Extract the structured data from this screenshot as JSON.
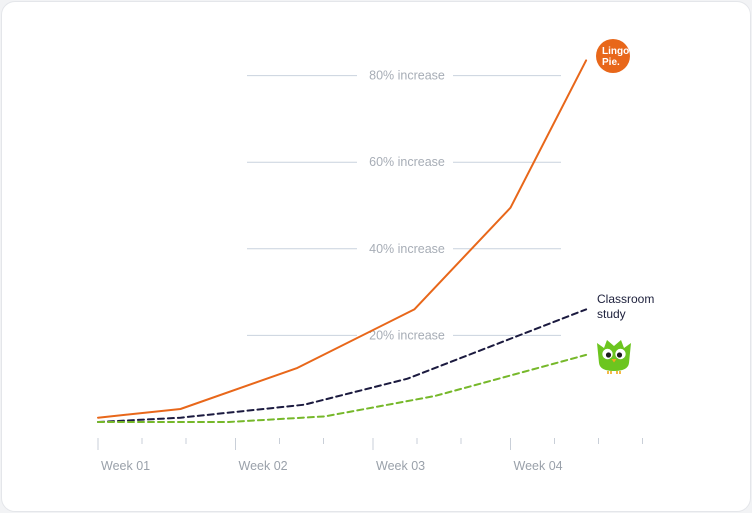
{
  "chart_data": {
    "type": "line",
    "x": [
      "Week 01",
      "Week 02",
      "Week 03",
      "Week 04"
    ],
    "y_ticks": [
      "20% increase",
      "40% increase",
      "60% increase",
      "80% increase"
    ],
    "ylim": [
      0,
      85
    ],
    "grid": true,
    "series": [
      {
        "name": "Lingo Pie",
        "color": "#e8671a",
        "style": "solid",
        "points": [
          [
            0,
            1
          ],
          [
            0.6,
            3
          ],
          [
            1.45,
            12.5
          ],
          [
            2.3,
            26
          ],
          [
            3.0,
            49.5
          ],
          [
            3.55,
            83.5
          ]
        ]
      },
      {
        "name": "Classroom study",
        "color": "#1b1a3f",
        "style": "dashed",
        "points": [
          [
            0,
            0
          ],
          [
            0.6,
            1
          ],
          [
            1.5,
            4
          ],
          [
            2.25,
            10
          ],
          [
            3.55,
            26
          ]
        ]
      },
      {
        "name": "Duolingo",
        "color": "#76b82a",
        "style": "dashed",
        "points": [
          [
            0,
            0
          ],
          [
            0.95,
            0
          ],
          [
            1.65,
            1.3
          ],
          [
            2.45,
            6
          ],
          [
            3.55,
            15.5
          ]
        ]
      }
    ],
    "annotations": {
      "lingopie_logo": "Lingo Pie.",
      "lingopie_logo_color": "#e8671a",
      "classroom_label": [
        "Classroom",
        "study"
      ],
      "duolingo_icon": "owl-icon",
      "duolingo_icon_color": "#6cc51f"
    }
  }
}
